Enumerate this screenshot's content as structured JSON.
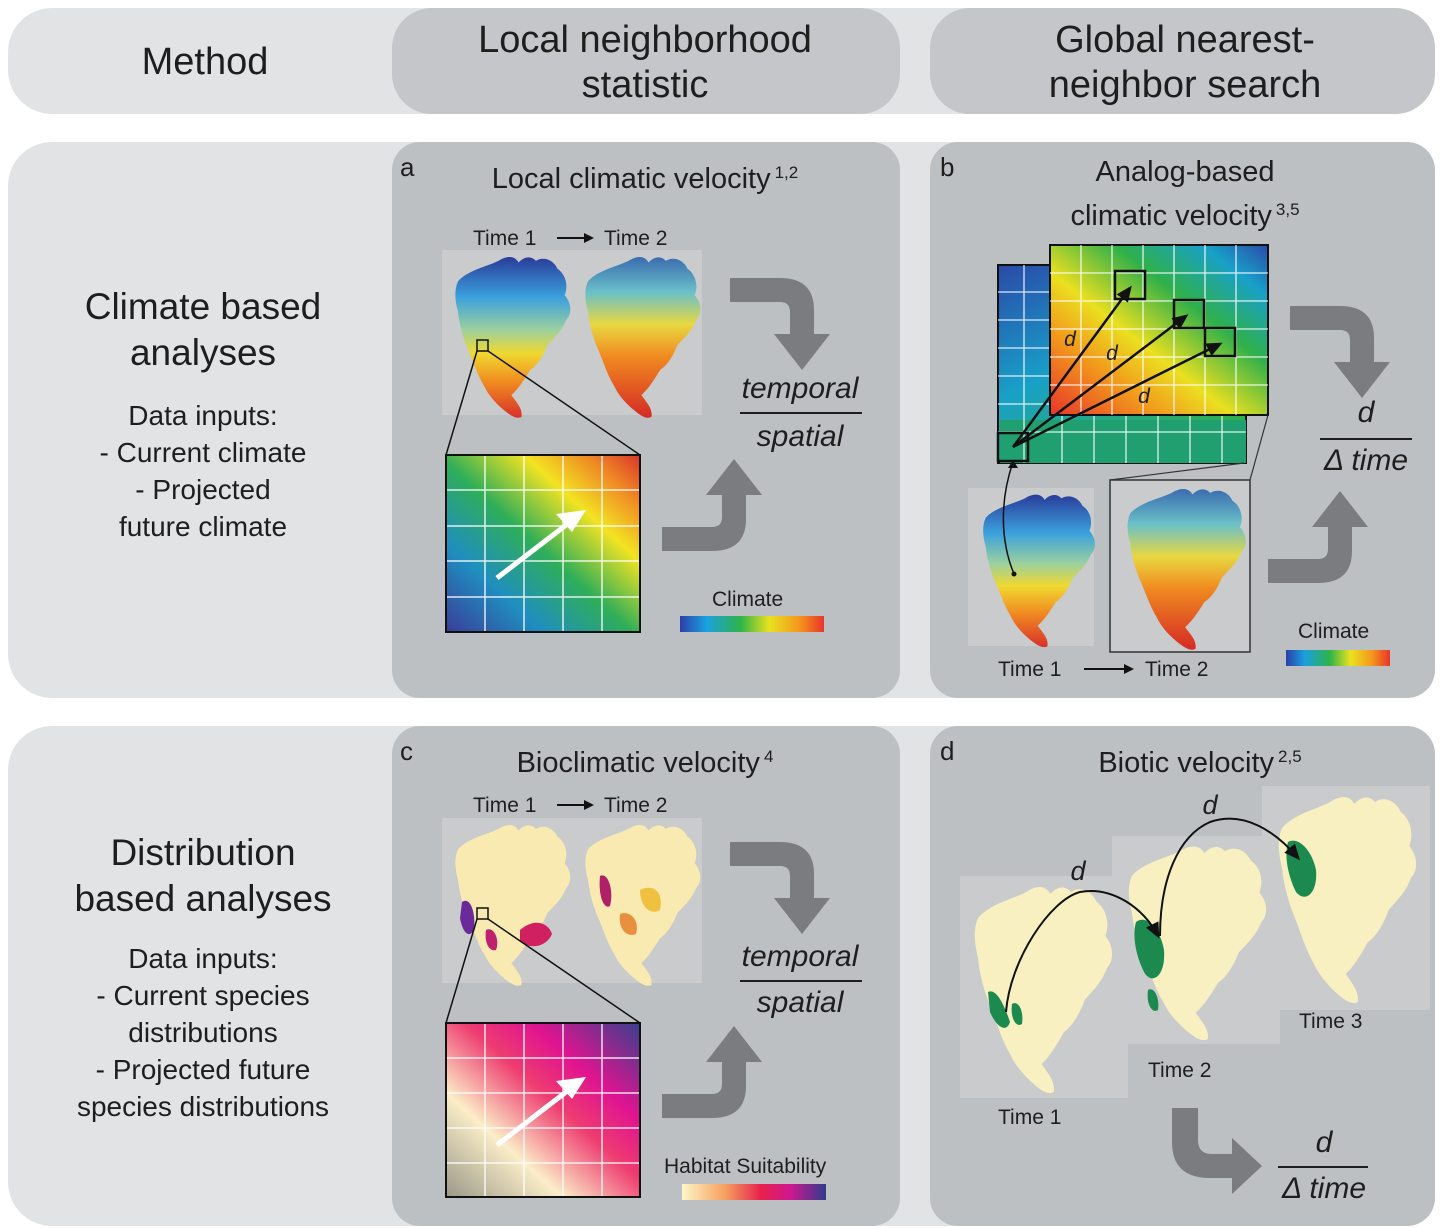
{
  "header": {
    "method_label": "Method",
    "col1_line1": "Local neighborhood",
    "col1_line2": "statistic",
    "col2_line1": "Global nearest-",
    "col2_line2": "neighbor search"
  },
  "rows": {
    "climate": {
      "title_line1": "Climate based",
      "title_line2": "analyses",
      "inputs": [
        "Data inputs:",
        "- Current climate",
        "- Projected",
        "future climate"
      ]
    },
    "distribution": {
      "title_line1": "Distribution",
      "title_line2": "based analyses",
      "inputs": [
        "Data inputs:",
        "- Current species",
        "distributions",
        "- Projected future",
        "species distributions"
      ]
    }
  },
  "panels": {
    "a": {
      "letter": "a",
      "title": "Local climatic velocity",
      "refs": "1,2",
      "time1": "Time 1",
      "time2": "Time 2",
      "numerator": "temporal",
      "denominator": "spatial",
      "legend": "Climate"
    },
    "b": {
      "letter": "b",
      "title_line1": "Analog-based",
      "title_line2": "climatic velocity",
      "refs": "3,5",
      "distance_symbol": "d",
      "time1": "Time 1",
      "time2": "Time 2",
      "numerator": "d",
      "denominator": "Δ time",
      "legend": "Climate"
    },
    "c": {
      "letter": "c",
      "title": "Bioclimatic velocity",
      "refs": "4",
      "time1": "Time 1",
      "time2": "Time 2",
      "numerator": "temporal",
      "denominator": "spatial",
      "legend": "Habitat Suitability"
    },
    "d": {
      "letter": "d",
      "title": "Biotic velocity",
      "refs": "2,5",
      "distance_symbol": "d",
      "time1": "Time 1",
      "time2": "Time 2",
      "time3": "Time 3",
      "numerator": "d",
      "denominator": "Δ time"
    }
  },
  "colors": {
    "band": "#e1e3e5",
    "column": "#c4c6c9",
    "arrow": "#7a7c80",
    "habitat_green": "#1c8a4e",
    "map_cream": "#f8f0c0"
  },
  "icons": [
    "curved-arrow-icon",
    "right-arrow-icon"
  ]
}
